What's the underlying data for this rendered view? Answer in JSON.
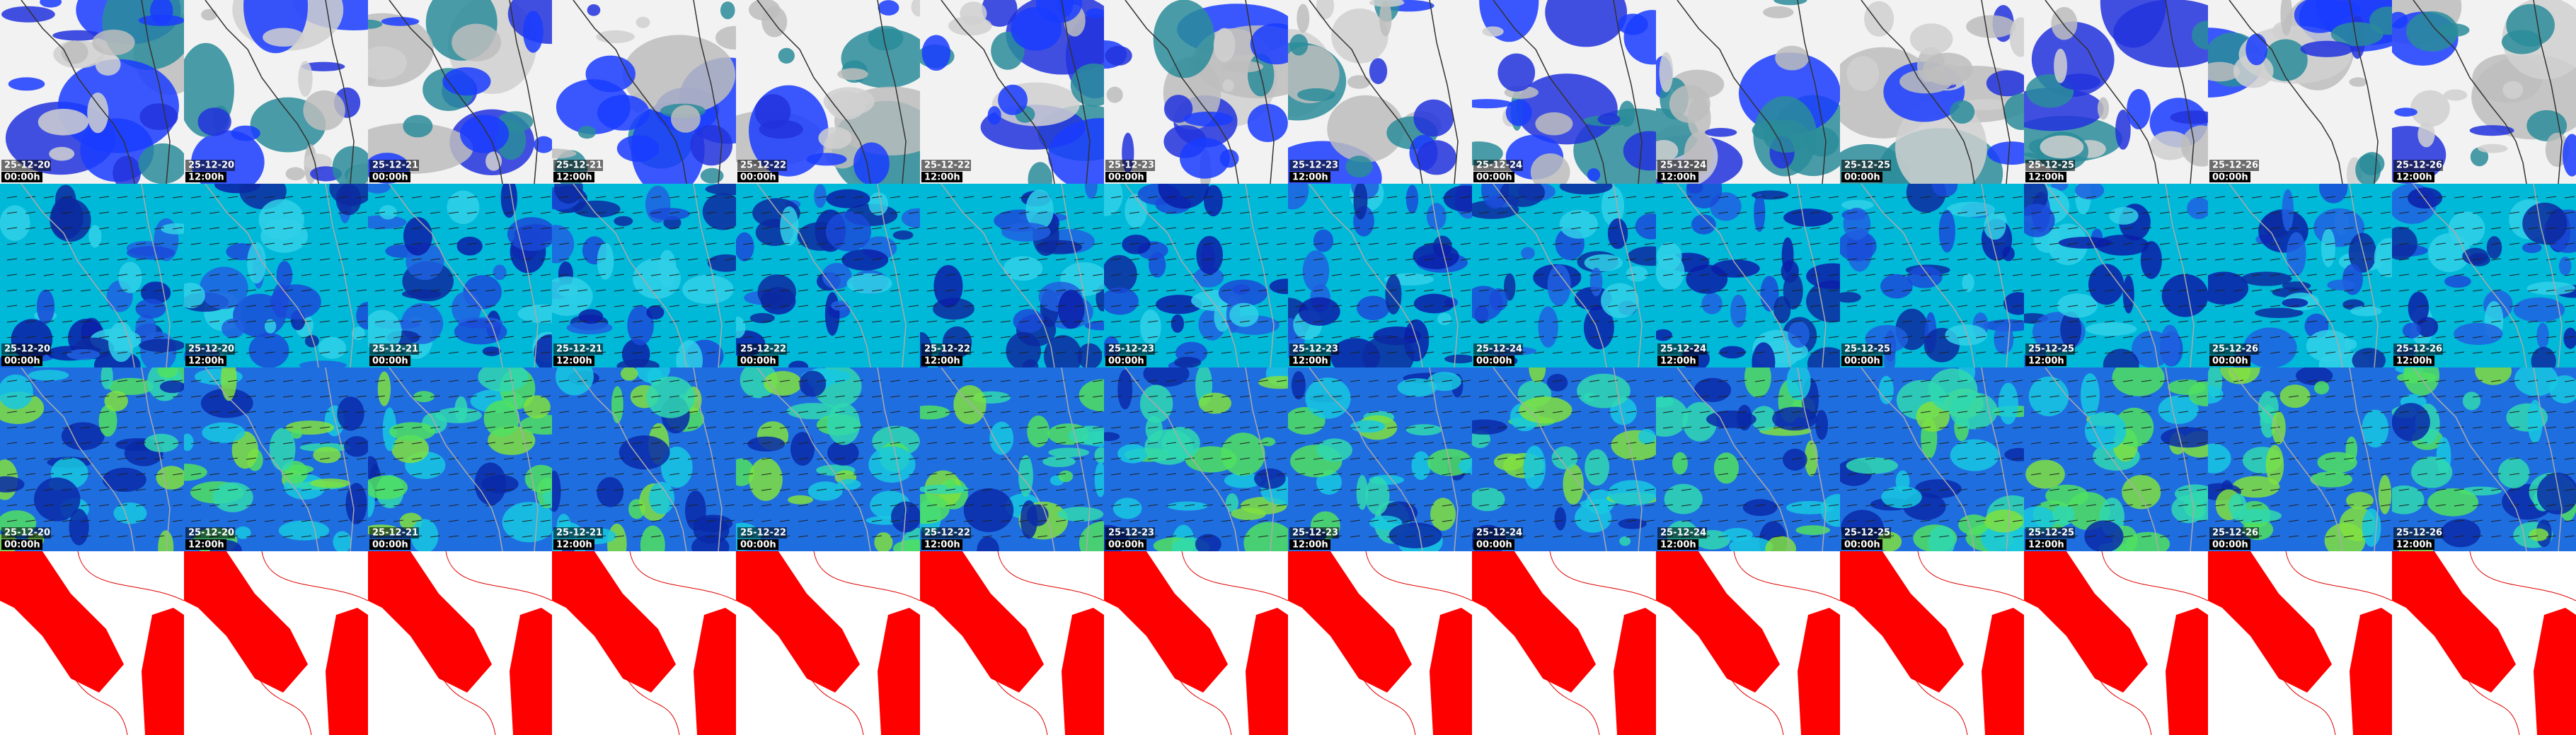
{
  "columns": [
    {
      "date": "25-12-20",
      "time": "00:00h"
    },
    {
      "date": "25-12-20",
      "time": "12:00h"
    },
    {
      "date": "25-12-21",
      "time": "00:00h"
    },
    {
      "date": "25-12-21",
      "time": "12:00h"
    },
    {
      "date": "25-12-22",
      "time": "00:00h"
    },
    {
      "date": "25-12-22",
      "time": "12:00h"
    },
    {
      "date": "25-12-23",
      "time": "00:00h"
    },
    {
      "date": "25-12-23",
      "time": "12:00h"
    },
    {
      "date": "25-12-24",
      "time": "00:00h"
    },
    {
      "date": "25-12-24",
      "time": "12:00h"
    },
    {
      "date": "25-12-25",
      "time": "00:00h"
    },
    {
      "date": "25-12-25",
      "time": "12:00h"
    },
    {
      "date": "25-12-26",
      "time": "00:00h"
    },
    {
      "date": "25-12-26",
      "time": "12:00h"
    }
  ]
}
